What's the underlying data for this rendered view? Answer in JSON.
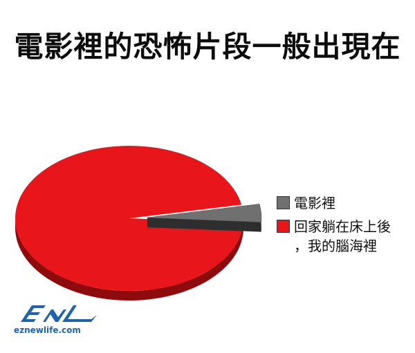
{
  "title": "電影裡的恐怖片段一般出現在",
  "chart_data": {
    "type": "pie",
    "title": "電影裡的恐怖片段一般出現在",
    "style": "3d",
    "legend_position": "right",
    "slices": [
      {
        "label": "電影裡",
        "value": 4,
        "color": "#707070",
        "side_color": "#3a3a3a",
        "exploded": true
      },
      {
        "label": "回家躺在床上後，我的腦海裡",
        "value": 96,
        "color": "#e8161a",
        "side_color": "#8e0b0d",
        "exploded": false
      }
    ]
  },
  "legend": {
    "items": [
      {
        "label_line1": "電影裡",
        "label_line2": "",
        "color": "#707070"
      },
      {
        "label_line1": "回家躺在床上後",
        "label_line2": "，我的腦海裡",
        "color": "#e8161a"
      }
    ]
  },
  "logo": {
    "mark": "ENL",
    "url": "eznewlife.com",
    "color": "#1e64ad"
  }
}
